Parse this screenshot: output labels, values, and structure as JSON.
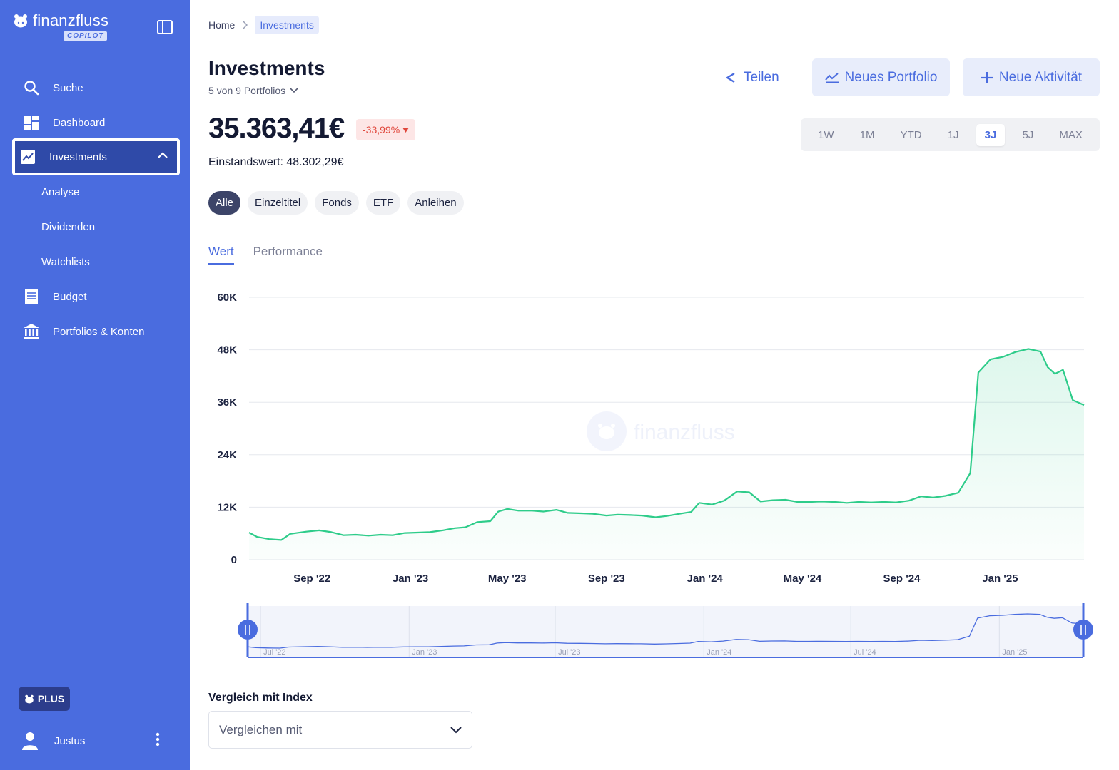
{
  "sidebar": {
    "logo_text": "finanzfluss",
    "logo_badge": "COPILOT",
    "items": [
      {
        "label": "Suche",
        "icon": "search-icon"
      },
      {
        "label": "Dashboard",
        "icon": "dashboard-icon"
      },
      {
        "label": "Investments",
        "icon": "trend-chart-icon",
        "active": true
      },
      {
        "label": "Budget",
        "icon": "receipt-icon"
      },
      {
        "label": "Portfolios & Konten",
        "icon": "bank-icon"
      }
    ],
    "subitems": [
      {
        "label": "Analyse"
      },
      {
        "label": "Dividenden"
      },
      {
        "label": "Watchlists"
      }
    ],
    "plus_label": "PLUS",
    "user_name": "Justus"
  },
  "breadcrumb": {
    "home": "Home",
    "current": "Investments"
  },
  "header": {
    "title": "Investments",
    "portfolio_selector": "5 von 9 Portfolios",
    "share_label": "Teilen",
    "new_portfolio_label": "Neues Portfolio",
    "new_activity_label": "Neue Aktivität"
  },
  "summary": {
    "value": "35.363,41€",
    "change": "-33,99%",
    "cost_basis": "Einstandswert: 48.302,29€"
  },
  "ranges": [
    "1W",
    "1M",
    "YTD",
    "1J",
    "3J",
    "5J",
    "MAX"
  ],
  "selected_range": "3J",
  "filters": [
    "Alle",
    "Einzeltitel",
    "Fonds",
    "ETF",
    "Anleihen"
  ],
  "selected_filter": "Alle",
  "tabs": [
    "Wert",
    "Performance"
  ],
  "selected_tab": "Wert",
  "chart_watermark": "finanzfluss",
  "colors": {
    "accent": "#4a6cdf",
    "line": "#2ecc8a",
    "negative": "#e0473c"
  },
  "chart_data": {
    "type": "area",
    "title": "",
    "xlabel": "",
    "ylabel": "",
    "ylim": [
      0,
      60000
    ],
    "y_ticks": [
      {
        "value": 0,
        "label": "0"
      },
      {
        "value": 12000,
        "label": "12K"
      },
      {
        "value": 24000,
        "label": "24K"
      },
      {
        "value": 36000,
        "label": "36K"
      },
      {
        "value": 48000,
        "label": "48K"
      },
      {
        "value": 60000,
        "label": "60K"
      }
    ],
    "x_ticks": [
      "Sep '22",
      "Jan '23",
      "May '23",
      "Sep '23",
      "Jan '24",
      "May '24",
      "Sep '24",
      "Jan '25"
    ],
    "x_range": [
      "2022-06-15",
      "2025-04-15"
    ],
    "grid": true,
    "series": [
      {
        "points": [
          [
            "2022-06-15",
            6200
          ],
          [
            "2022-06-25",
            5200
          ],
          [
            "2022-07-10",
            4700
          ],
          [
            "2022-07-25",
            4500
          ],
          [
            "2022-08-05",
            5900
          ],
          [
            "2022-08-25",
            6400
          ],
          [
            "2022-09-10",
            6700
          ],
          [
            "2022-09-25",
            6300
          ],
          [
            "2022-10-10",
            5600
          ],
          [
            "2022-10-25",
            5700
          ],
          [
            "2022-11-10",
            5500
          ],
          [
            "2022-11-25",
            5700
          ],
          [
            "2022-12-10",
            5600
          ],
          [
            "2022-12-25",
            6100
          ],
          [
            "2023-01-10",
            6200
          ],
          [
            "2023-01-25",
            6300
          ],
          [
            "2023-02-10",
            6700
          ],
          [
            "2023-02-25",
            7200
          ],
          [
            "2023-03-10",
            7400
          ],
          [
            "2023-03-25",
            8600
          ],
          [
            "2023-04-10",
            8800
          ],
          [
            "2023-04-20",
            11000
          ],
          [
            "2023-05-01",
            11600
          ],
          [
            "2023-05-15",
            11200
          ],
          [
            "2023-06-01",
            11200
          ],
          [
            "2023-06-15",
            11000
          ],
          [
            "2023-07-01",
            11400
          ],
          [
            "2023-07-15",
            10700
          ],
          [
            "2023-08-01",
            10600
          ],
          [
            "2023-08-15",
            10500
          ],
          [
            "2023-09-01",
            10100
          ],
          [
            "2023-09-15",
            10300
          ],
          [
            "2023-10-01",
            10200
          ],
          [
            "2023-10-15",
            10100
          ],
          [
            "2023-11-01",
            9700
          ],
          [
            "2023-11-15",
            10000
          ],
          [
            "2023-12-01",
            10500
          ],
          [
            "2023-12-15",
            10900
          ],
          [
            "2023-12-25",
            13000
          ],
          [
            "2024-01-10",
            12600
          ],
          [
            "2024-01-25",
            13500
          ],
          [
            "2024-02-10",
            15600
          ],
          [
            "2024-02-25",
            15400
          ],
          [
            "2024-03-10",
            13300
          ],
          [
            "2024-03-25",
            13600
          ],
          [
            "2024-04-10",
            13700
          ],
          [
            "2024-04-25",
            13200
          ],
          [
            "2024-05-10",
            13200
          ],
          [
            "2024-05-25",
            13300
          ],
          [
            "2024-06-10",
            13200
          ],
          [
            "2024-06-25",
            13000
          ],
          [
            "2024-07-10",
            13200
          ],
          [
            "2024-07-25",
            13100
          ],
          [
            "2024-08-10",
            13200
          ],
          [
            "2024-08-25",
            13100
          ],
          [
            "2024-09-10",
            13500
          ],
          [
            "2024-09-25",
            14500
          ],
          [
            "2024-10-10",
            14200
          ],
          [
            "2024-10-25",
            14600
          ],
          [
            "2024-11-10",
            15300
          ],
          [
            "2024-11-25",
            19800
          ],
          [
            "2024-12-05",
            42800
          ],
          [
            "2024-12-20",
            45800
          ],
          [
            "2025-01-05",
            46400
          ],
          [
            "2025-01-20",
            47500
          ],
          [
            "2025-02-05",
            48200
          ],
          [
            "2025-02-20",
            47600
          ],
          [
            "2025-03-01",
            44000
          ],
          [
            "2025-03-10",
            42500
          ],
          [
            "2025-03-20",
            43400
          ],
          [
            "2025-04-01",
            36500
          ],
          [
            "2025-04-15",
            35363
          ]
        ]
      }
    ]
  },
  "navigator_ticks": [
    "Jul '22",
    "Jan '23",
    "Jul '23",
    "Jan '24",
    "Jul '24",
    "Jan '25"
  ],
  "compare": {
    "label": "Vergleich mit Index",
    "placeholder": "Vergleichen mit"
  }
}
